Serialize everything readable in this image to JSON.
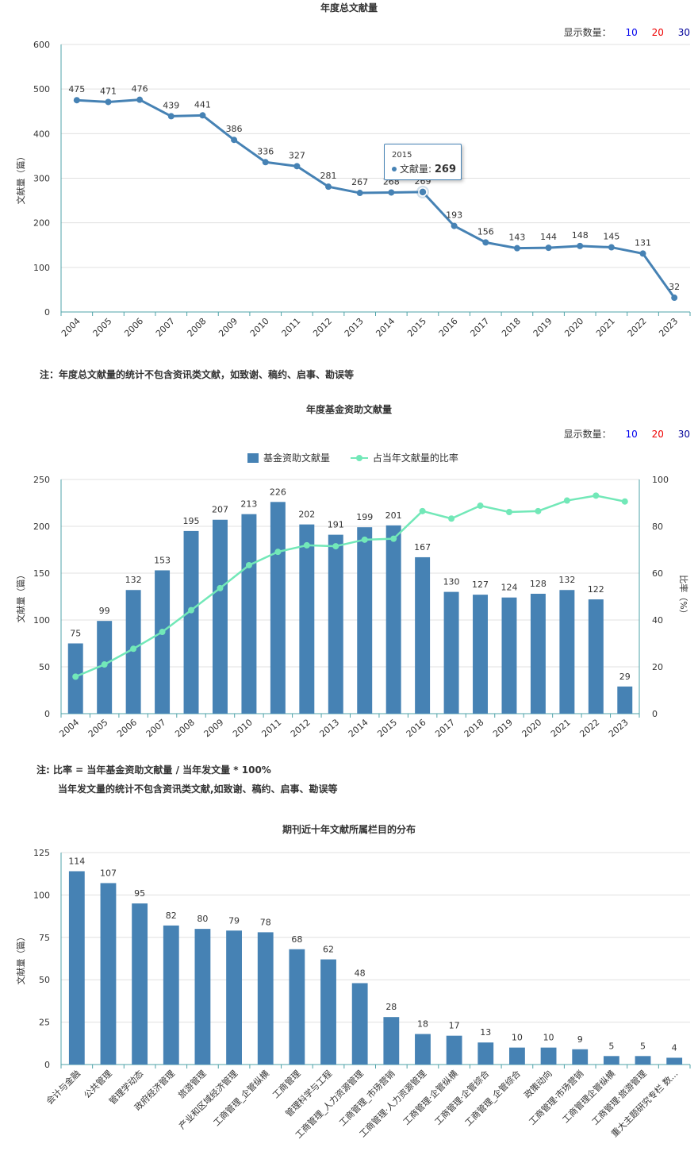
{
  "controls": {
    "label": "显示数量：",
    "opt10": "10",
    "opt20": "20",
    "opt30": "30",
    "color10": "#0000ee",
    "color20": "#ee0000",
    "color30": "#000099"
  },
  "chart_data": [
    {
      "type": "line",
      "title": "年度总文献量",
      "ylabel": "文献量（篇）",
      "ylim": [
        0,
        600
      ],
      "yticks": [
        0,
        100,
        200,
        300,
        400,
        500,
        600
      ],
      "categories": [
        "2004",
        "2005",
        "2006",
        "2007",
        "2008",
        "2009",
        "2010",
        "2011",
        "2012",
        "2013",
        "2014",
        "2015",
        "2016",
        "2017",
        "2018",
        "2019",
        "2020",
        "2021",
        "2022",
        "2023"
      ],
      "series": [
        {
          "name": "文献量",
          "values": [
            475,
            471,
            476,
            439,
            441,
            386,
            336,
            327,
            281,
            267,
            268,
            269,
            193,
            156,
            143,
            144,
            148,
            145,
            131,
            32
          ],
          "color": "#4682b4"
        }
      ],
      "tooltip": {
        "category": "2015",
        "label": "文献量:",
        "value": "269"
      },
      "note": "注：年度总文献量的统计不包含资讯类文献，如致谢、稿约、启事、勘误等"
    },
    {
      "type": "bar",
      "title": "年度基金资助文献量",
      "ylabel": "文献量（篇）",
      "y2label": "比率（%）",
      "ylim": [
        0,
        250
      ],
      "yticks": [
        0,
        50,
        100,
        150,
        200,
        250
      ],
      "y2lim": [
        0,
        100
      ],
      "y2ticks": [
        0,
        20,
        40,
        60,
        80,
        100
      ],
      "categories": [
        "2004",
        "2005",
        "2006",
        "2007",
        "2008",
        "2009",
        "2010",
        "2011",
        "2012",
        "2013",
        "2014",
        "2015",
        "2016",
        "2017",
        "2018",
        "2019",
        "2020",
        "2021",
        "2022",
        "2023"
      ],
      "series": [
        {
          "name": "基金资助文献量",
          "type": "bar",
          "values": [
            75,
            99,
            132,
            153,
            195,
            207,
            213,
            226,
            202,
            191,
            199,
            201,
            167,
            130,
            127,
            124,
            128,
            132,
            122,
            29
          ],
          "color": "#4682b4"
        },
        {
          "name": "占当年文献量的比率",
          "type": "line",
          "axis": "right",
          "values": [
            15.8,
            21.0,
            27.7,
            34.9,
            44.2,
            53.6,
            63.4,
            69.1,
            71.9,
            71.5,
            74.3,
            74.7,
            86.5,
            83.3,
            88.8,
            86.1,
            86.5,
            91.0,
            93.1,
            90.6
          ],
          "color": "#72e8b8"
        }
      ],
      "note1": "注:   比率 = 当年基金资助文献量 / 当年发文量 * 100%",
      "note2": "当年发文量的统计不包含资讯类文献,如致谢、稿约、启事、勘误等"
    },
    {
      "type": "bar",
      "title": "期刊近十年文献所属栏目的分布",
      "ylabel": "文献量（篇）",
      "ylim": [
        0,
        125
      ],
      "yticks": [
        0,
        25,
        50,
        75,
        100,
        125
      ],
      "categories": [
        "会计与金融",
        "公共管理",
        "管理学动态",
        "政府经济管理",
        "旅游管理",
        "产业和区域经济管理",
        "工商管理_企管纵横",
        "工商管理",
        "管理科学与工程",
        "工商管理_人力资源管理",
        "工商管理_市场营销",
        "工商管理·人力资源管理",
        "工商管理·企管纵横",
        "工商管理·企管综合",
        "工商管理_企管综合",
        "政策动向",
        "工商管理·市场营销",
        "工商管理企管纵横",
        "工商管理·旅游管理",
        "重大主题研究专栏  数..."
      ],
      "series": [
        {
          "name": "文献量",
          "values": [
            114,
            107,
            95,
            82,
            80,
            79,
            78,
            68,
            62,
            48,
            28,
            18,
            17,
            13,
            10,
            10,
            9,
            5,
            5,
            4
          ],
          "color": "#4682b4"
        }
      ]
    }
  ]
}
